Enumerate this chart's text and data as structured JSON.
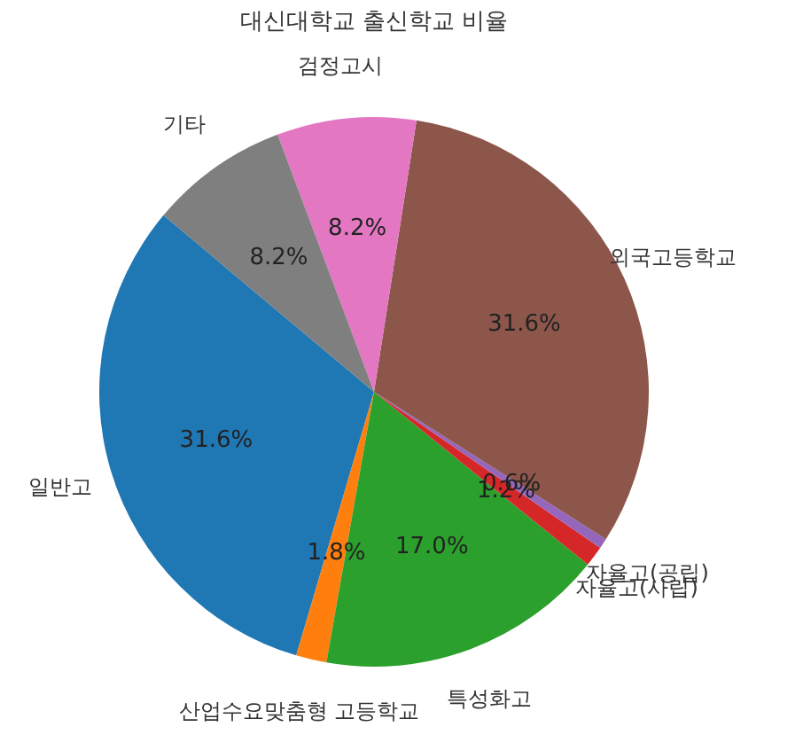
{
  "chart_data": {
    "type": "pie",
    "title": "대신대학교 출신학교 비율",
    "categories": [
      "일반고",
      "산업수요맞춤형 고등학교",
      "특성화고",
      "자율고(사립)",
      "자율고(공립)",
      "외국고등학교",
      "검정고시",
      "기타"
    ],
    "values": [
      31.6,
      1.8,
      17.0,
      1.2,
      0.6,
      31.6,
      8.2,
      8.2
    ],
    "value_labels": [
      "31.6%",
      "1.8%",
      "17.0%",
      "1.2%",
      "0.6%",
      "31.6%",
      "8.2%",
      "8.2%"
    ],
    "colors": [
      "#1f77b4",
      "#ff7f0e",
      "#2ca02c",
      "#d62728",
      "#9467bd",
      "#8c564b",
      "#e377c2",
      "#7f7f7f"
    ],
    "legend": false
  }
}
